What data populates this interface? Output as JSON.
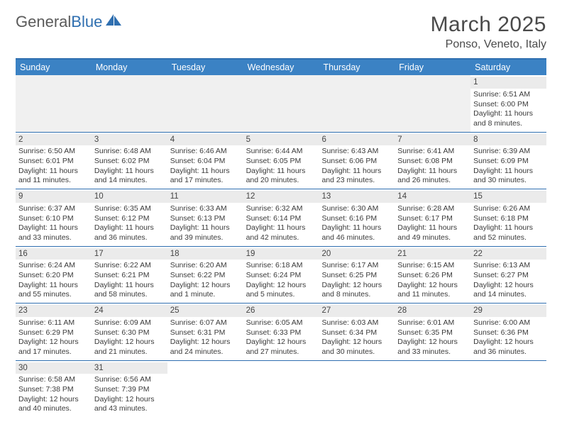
{
  "logo": {
    "text1": "General",
    "text2": "Blue"
  },
  "title": "March 2025",
  "location": "Ponso, Veneto, Italy",
  "colors": {
    "header_bg": "#3b82c4",
    "border": "#2f6fb0",
    "daynum_bg": "#ebebeb",
    "empty_bg": "#f0f0f0",
    "text": "#3a3a3a"
  },
  "day_headers": [
    "Sunday",
    "Monday",
    "Tuesday",
    "Wednesday",
    "Thursday",
    "Friday",
    "Saturday"
  ],
  "weeks": [
    [
      {
        "empty": true
      },
      {
        "empty": true
      },
      {
        "empty": true
      },
      {
        "empty": true
      },
      {
        "empty": true
      },
      {
        "empty": true
      },
      {
        "n": "1",
        "sunrise": "Sunrise: 6:51 AM",
        "sunset": "Sunset: 6:00 PM",
        "daylight": "Daylight: 11 hours and 8 minutes."
      }
    ],
    [
      {
        "n": "2",
        "sunrise": "Sunrise: 6:50 AM",
        "sunset": "Sunset: 6:01 PM",
        "daylight": "Daylight: 11 hours and 11 minutes."
      },
      {
        "n": "3",
        "sunrise": "Sunrise: 6:48 AM",
        "sunset": "Sunset: 6:02 PM",
        "daylight": "Daylight: 11 hours and 14 minutes."
      },
      {
        "n": "4",
        "sunrise": "Sunrise: 6:46 AM",
        "sunset": "Sunset: 6:04 PM",
        "daylight": "Daylight: 11 hours and 17 minutes."
      },
      {
        "n": "5",
        "sunrise": "Sunrise: 6:44 AM",
        "sunset": "Sunset: 6:05 PM",
        "daylight": "Daylight: 11 hours and 20 minutes."
      },
      {
        "n": "6",
        "sunrise": "Sunrise: 6:43 AM",
        "sunset": "Sunset: 6:06 PM",
        "daylight": "Daylight: 11 hours and 23 minutes."
      },
      {
        "n": "7",
        "sunrise": "Sunrise: 6:41 AM",
        "sunset": "Sunset: 6:08 PM",
        "daylight": "Daylight: 11 hours and 26 minutes."
      },
      {
        "n": "8",
        "sunrise": "Sunrise: 6:39 AM",
        "sunset": "Sunset: 6:09 PM",
        "daylight": "Daylight: 11 hours and 30 minutes."
      }
    ],
    [
      {
        "n": "9",
        "sunrise": "Sunrise: 6:37 AM",
        "sunset": "Sunset: 6:10 PM",
        "daylight": "Daylight: 11 hours and 33 minutes."
      },
      {
        "n": "10",
        "sunrise": "Sunrise: 6:35 AM",
        "sunset": "Sunset: 6:12 PM",
        "daylight": "Daylight: 11 hours and 36 minutes."
      },
      {
        "n": "11",
        "sunrise": "Sunrise: 6:33 AM",
        "sunset": "Sunset: 6:13 PM",
        "daylight": "Daylight: 11 hours and 39 minutes."
      },
      {
        "n": "12",
        "sunrise": "Sunrise: 6:32 AM",
        "sunset": "Sunset: 6:14 PM",
        "daylight": "Daylight: 11 hours and 42 minutes."
      },
      {
        "n": "13",
        "sunrise": "Sunrise: 6:30 AM",
        "sunset": "Sunset: 6:16 PM",
        "daylight": "Daylight: 11 hours and 46 minutes."
      },
      {
        "n": "14",
        "sunrise": "Sunrise: 6:28 AM",
        "sunset": "Sunset: 6:17 PM",
        "daylight": "Daylight: 11 hours and 49 minutes."
      },
      {
        "n": "15",
        "sunrise": "Sunrise: 6:26 AM",
        "sunset": "Sunset: 6:18 PM",
        "daylight": "Daylight: 11 hours and 52 minutes."
      }
    ],
    [
      {
        "n": "16",
        "sunrise": "Sunrise: 6:24 AM",
        "sunset": "Sunset: 6:20 PM",
        "daylight": "Daylight: 11 hours and 55 minutes."
      },
      {
        "n": "17",
        "sunrise": "Sunrise: 6:22 AM",
        "sunset": "Sunset: 6:21 PM",
        "daylight": "Daylight: 11 hours and 58 minutes."
      },
      {
        "n": "18",
        "sunrise": "Sunrise: 6:20 AM",
        "sunset": "Sunset: 6:22 PM",
        "daylight": "Daylight: 12 hours and 1 minute."
      },
      {
        "n": "19",
        "sunrise": "Sunrise: 6:18 AM",
        "sunset": "Sunset: 6:24 PM",
        "daylight": "Daylight: 12 hours and 5 minutes."
      },
      {
        "n": "20",
        "sunrise": "Sunrise: 6:17 AM",
        "sunset": "Sunset: 6:25 PM",
        "daylight": "Daylight: 12 hours and 8 minutes."
      },
      {
        "n": "21",
        "sunrise": "Sunrise: 6:15 AM",
        "sunset": "Sunset: 6:26 PM",
        "daylight": "Daylight: 12 hours and 11 minutes."
      },
      {
        "n": "22",
        "sunrise": "Sunrise: 6:13 AM",
        "sunset": "Sunset: 6:27 PM",
        "daylight": "Daylight: 12 hours and 14 minutes."
      }
    ],
    [
      {
        "n": "23",
        "sunrise": "Sunrise: 6:11 AM",
        "sunset": "Sunset: 6:29 PM",
        "daylight": "Daylight: 12 hours and 17 minutes."
      },
      {
        "n": "24",
        "sunrise": "Sunrise: 6:09 AM",
        "sunset": "Sunset: 6:30 PM",
        "daylight": "Daylight: 12 hours and 21 minutes."
      },
      {
        "n": "25",
        "sunrise": "Sunrise: 6:07 AM",
        "sunset": "Sunset: 6:31 PM",
        "daylight": "Daylight: 12 hours and 24 minutes."
      },
      {
        "n": "26",
        "sunrise": "Sunrise: 6:05 AM",
        "sunset": "Sunset: 6:33 PM",
        "daylight": "Daylight: 12 hours and 27 minutes."
      },
      {
        "n": "27",
        "sunrise": "Sunrise: 6:03 AM",
        "sunset": "Sunset: 6:34 PM",
        "daylight": "Daylight: 12 hours and 30 minutes."
      },
      {
        "n": "28",
        "sunrise": "Sunrise: 6:01 AM",
        "sunset": "Sunset: 6:35 PM",
        "daylight": "Daylight: 12 hours and 33 minutes."
      },
      {
        "n": "29",
        "sunrise": "Sunrise: 6:00 AM",
        "sunset": "Sunset: 6:36 PM",
        "daylight": "Daylight: 12 hours and 36 minutes."
      }
    ],
    [
      {
        "n": "30",
        "sunrise": "Sunrise: 6:58 AM",
        "sunset": "Sunset: 7:38 PM",
        "daylight": "Daylight: 12 hours and 40 minutes."
      },
      {
        "n": "31",
        "sunrise": "Sunrise: 6:56 AM",
        "sunset": "Sunset: 7:39 PM",
        "daylight": "Daylight: 12 hours and 43 minutes."
      },
      {
        "empty": true,
        "blank": true
      },
      {
        "empty": true,
        "blank": true
      },
      {
        "empty": true,
        "blank": true
      },
      {
        "empty": true,
        "blank": true
      },
      {
        "empty": true,
        "blank": true
      }
    ]
  ]
}
